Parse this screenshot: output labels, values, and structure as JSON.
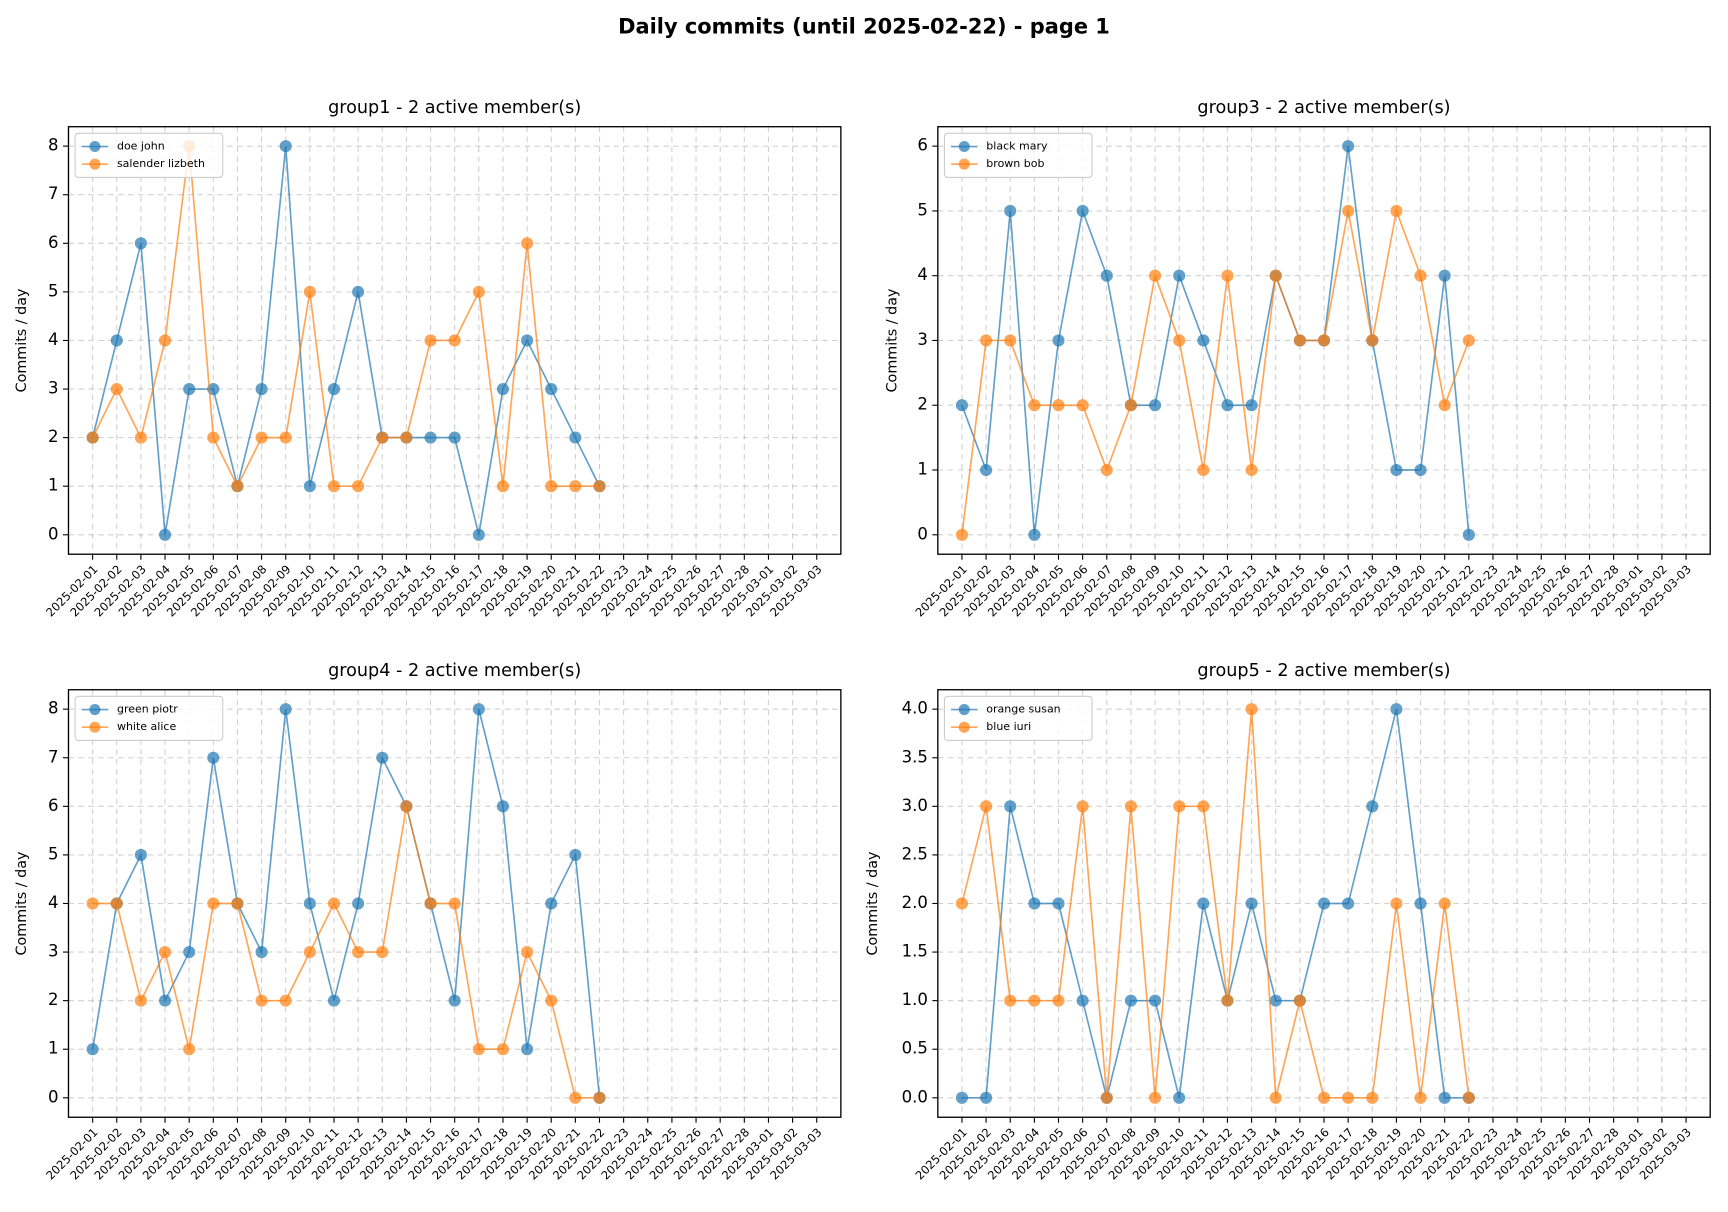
{
  "title": "Daily commits (until 2025-02-22) - page 1",
  "chart_data": [
    {
      "type": "line",
      "title": "group1 - 2 active member(s)",
      "ylabel": "Commits / day",
      "x": [
        "2025-02-01",
        "2025-02-02",
        "2025-02-03",
        "2025-02-04",
        "2025-02-05",
        "2025-02-06",
        "2025-02-07",
        "2025-02-08",
        "2025-02-09",
        "2025-02-10",
        "2025-02-11",
        "2025-02-12",
        "2025-02-13",
        "2025-02-14",
        "2025-02-15",
        "2025-02-16",
        "2025-02-17",
        "2025-02-18",
        "2025-02-19",
        "2025-02-20",
        "2025-02-21",
        "2025-02-22"
      ],
      "xticks": [
        "2025-02-01",
        "2025-02-02",
        "2025-02-03",
        "2025-02-04",
        "2025-02-05",
        "2025-02-06",
        "2025-02-07",
        "2025-02-08",
        "2025-02-09",
        "2025-02-10",
        "2025-02-11",
        "2025-02-12",
        "2025-02-13",
        "2025-02-14",
        "2025-02-15",
        "2025-02-16",
        "2025-02-17",
        "2025-02-18",
        "2025-02-19",
        "2025-02-20",
        "2025-02-21",
        "2025-02-22",
        "2025-02-23",
        "2025-02-24",
        "2025-02-25",
        "2025-02-26",
        "2025-02-27",
        "2025-02-28",
        "2025-03-01",
        "2025-03-02",
        "2025-03-03"
      ],
      "xlim": [
        "2025-01-31",
        "2025-03-04"
      ],
      "ylim": [
        -0.4,
        8.4
      ],
      "yticks": [
        0,
        1,
        2,
        3,
        4,
        5,
        6,
        7,
        8
      ],
      "grid": true,
      "legend": "upper left",
      "series": [
        {
          "name": "doe john",
          "color": "#1f77b4",
          "values": [
            2,
            4,
            6,
            0,
            3,
            3,
            1,
            3,
            8,
            1,
            3,
            5,
            2,
            2,
            2,
            2,
            0,
            3,
            4,
            3,
            2,
            1
          ]
        },
        {
          "name": "salender lizbeth",
          "color": "#ff7f0e",
          "values": [
            2,
            3,
            2,
            4,
            8,
            2,
            1,
            2,
            2,
            5,
            1,
            1,
            2,
            2,
            4,
            4,
            5,
            1,
            6,
            1,
            1,
            1
          ]
        }
      ]
    },
    {
      "type": "line",
      "title": "group3 - 2 active member(s)",
      "ylabel": "Commits / day",
      "x": [
        "2025-02-01",
        "2025-02-02",
        "2025-02-03",
        "2025-02-04",
        "2025-02-05",
        "2025-02-06",
        "2025-02-07",
        "2025-02-08",
        "2025-02-09",
        "2025-02-10",
        "2025-02-11",
        "2025-02-12",
        "2025-02-13",
        "2025-02-14",
        "2025-02-15",
        "2025-02-16",
        "2025-02-17",
        "2025-02-18",
        "2025-02-19",
        "2025-02-20",
        "2025-02-21",
        "2025-02-22"
      ],
      "xticks": [
        "2025-02-01",
        "2025-02-02",
        "2025-02-03",
        "2025-02-04",
        "2025-02-05",
        "2025-02-06",
        "2025-02-07",
        "2025-02-08",
        "2025-02-09",
        "2025-02-10",
        "2025-02-11",
        "2025-02-12",
        "2025-02-13",
        "2025-02-14",
        "2025-02-15",
        "2025-02-16",
        "2025-02-17",
        "2025-02-18",
        "2025-02-19",
        "2025-02-20",
        "2025-02-21",
        "2025-02-22",
        "2025-02-23",
        "2025-02-24",
        "2025-02-25",
        "2025-02-26",
        "2025-02-27",
        "2025-02-28",
        "2025-03-01",
        "2025-03-02",
        "2025-03-03"
      ],
      "xlim": [
        "2025-01-31",
        "2025-03-04"
      ],
      "ylim": [
        -0.3,
        6.3
      ],
      "yticks": [
        0,
        1,
        2,
        3,
        4,
        5,
        6
      ],
      "grid": true,
      "legend": "upper left",
      "series": [
        {
          "name": "black mary",
          "color": "#1f77b4",
          "values": [
            2,
            1,
            5,
            0,
            3,
            5,
            4,
            2,
            2,
            4,
            3,
            2,
            2,
            4,
            3,
            3,
            6,
            3,
            1,
            1,
            4,
            0
          ]
        },
        {
          "name": "brown bob",
          "color": "#ff7f0e",
          "values": [
            0,
            3,
            3,
            2,
            2,
            2,
            1,
            2,
            4,
            3,
            1,
            4,
            1,
            4,
            3,
            3,
            5,
            3,
            5,
            4,
            2,
            3
          ]
        }
      ]
    },
    {
      "type": "line",
      "title": "group4 - 2 active member(s)",
      "ylabel": "Commits / day",
      "x": [
        "2025-02-01",
        "2025-02-02",
        "2025-02-03",
        "2025-02-04",
        "2025-02-05",
        "2025-02-06",
        "2025-02-07",
        "2025-02-08",
        "2025-02-09",
        "2025-02-10",
        "2025-02-11",
        "2025-02-12",
        "2025-02-13",
        "2025-02-14",
        "2025-02-15",
        "2025-02-16",
        "2025-02-17",
        "2025-02-18",
        "2025-02-19",
        "2025-02-20",
        "2025-02-21",
        "2025-02-22"
      ],
      "xticks": [
        "2025-02-01",
        "2025-02-02",
        "2025-02-03",
        "2025-02-04",
        "2025-02-05",
        "2025-02-06",
        "2025-02-07",
        "2025-02-08",
        "2025-02-09",
        "2025-02-10",
        "2025-02-11",
        "2025-02-12",
        "2025-02-13",
        "2025-02-14",
        "2025-02-15",
        "2025-02-16",
        "2025-02-17",
        "2025-02-18",
        "2025-02-19",
        "2025-02-20",
        "2025-02-21",
        "2025-02-22",
        "2025-02-23",
        "2025-02-24",
        "2025-02-25",
        "2025-02-26",
        "2025-02-27",
        "2025-02-28",
        "2025-03-01",
        "2025-03-02",
        "2025-03-03"
      ],
      "xlim": [
        "2025-01-31",
        "2025-03-04"
      ],
      "ylim": [
        -0.4,
        8.4
      ],
      "yticks": [
        0,
        1,
        2,
        3,
        4,
        5,
        6,
        7,
        8
      ],
      "grid": true,
      "legend": "upper left",
      "series": [
        {
          "name": "green piotr",
          "color": "#1f77b4",
          "values": [
            1,
            4,
            5,
            2,
            3,
            7,
            4,
            3,
            8,
            4,
            2,
            4,
            7,
            6,
            4,
            2,
            8,
            6,
            1,
            4,
            5,
            0
          ]
        },
        {
          "name": "white alice",
          "color": "#ff7f0e",
          "values": [
            4,
            4,
            2,
            3,
            1,
            4,
            4,
            2,
            2,
            3,
            4,
            3,
            3,
            6,
            4,
            4,
            1,
            1,
            3,
            2,
            0,
            0
          ]
        }
      ]
    },
    {
      "type": "line",
      "title": "group5 - 2 active member(s)",
      "ylabel": "Commits / day",
      "x": [
        "2025-02-01",
        "2025-02-02",
        "2025-02-03",
        "2025-02-04",
        "2025-02-05",
        "2025-02-06",
        "2025-02-07",
        "2025-02-08",
        "2025-02-09",
        "2025-02-10",
        "2025-02-11",
        "2025-02-12",
        "2025-02-13",
        "2025-02-14",
        "2025-02-15",
        "2025-02-16",
        "2025-02-17",
        "2025-02-18",
        "2025-02-19",
        "2025-02-20",
        "2025-02-21",
        "2025-02-22"
      ],
      "xticks": [
        "2025-02-01",
        "2025-02-02",
        "2025-02-03",
        "2025-02-04",
        "2025-02-05",
        "2025-02-06",
        "2025-02-07",
        "2025-02-08",
        "2025-02-09",
        "2025-02-10",
        "2025-02-11",
        "2025-02-12",
        "2025-02-13",
        "2025-02-14",
        "2025-02-15",
        "2025-02-16",
        "2025-02-17",
        "2025-02-18",
        "2025-02-19",
        "2025-02-20",
        "2025-02-21",
        "2025-02-22",
        "2025-02-23",
        "2025-02-24",
        "2025-02-25",
        "2025-02-26",
        "2025-02-27",
        "2025-02-28",
        "2025-03-01",
        "2025-03-02",
        "2025-03-03"
      ],
      "xlim": [
        "2025-01-31",
        "2025-03-04"
      ],
      "ylim": [
        -0.2,
        4.2
      ],
      "yticks": [
        {
          "value": 0,
          "label": "0.0"
        },
        0.5,
        {
          "value": 1,
          "label": "1.0"
        },
        1.5,
        {
          "value": 2,
          "label": "2.0"
        },
        2.5,
        {
          "value": 3,
          "label": "3.0"
        },
        3.5,
        {
          "value": 4,
          "label": "4.0"
        }
      ],
      "grid": true,
      "legend": "upper left",
      "series": [
        {
          "name": "orange susan",
          "color": "#1f77b4",
          "values": [
            0,
            0,
            3,
            2,
            2,
            1,
            0,
            1,
            1,
            0,
            2,
            1,
            2,
            1,
            1,
            2,
            2,
            3,
            4,
            2,
            0,
            0
          ]
        },
        {
          "name": "blue iuri",
          "color": "#ff7f0e",
          "values": [
            2,
            3,
            1,
            1,
            1,
            3,
            0,
            3,
            0,
            3,
            3,
            1,
            4,
            0,
            1,
            0,
            0,
            0,
            2,
            0,
            2,
            0
          ]
        }
      ]
    }
  ]
}
